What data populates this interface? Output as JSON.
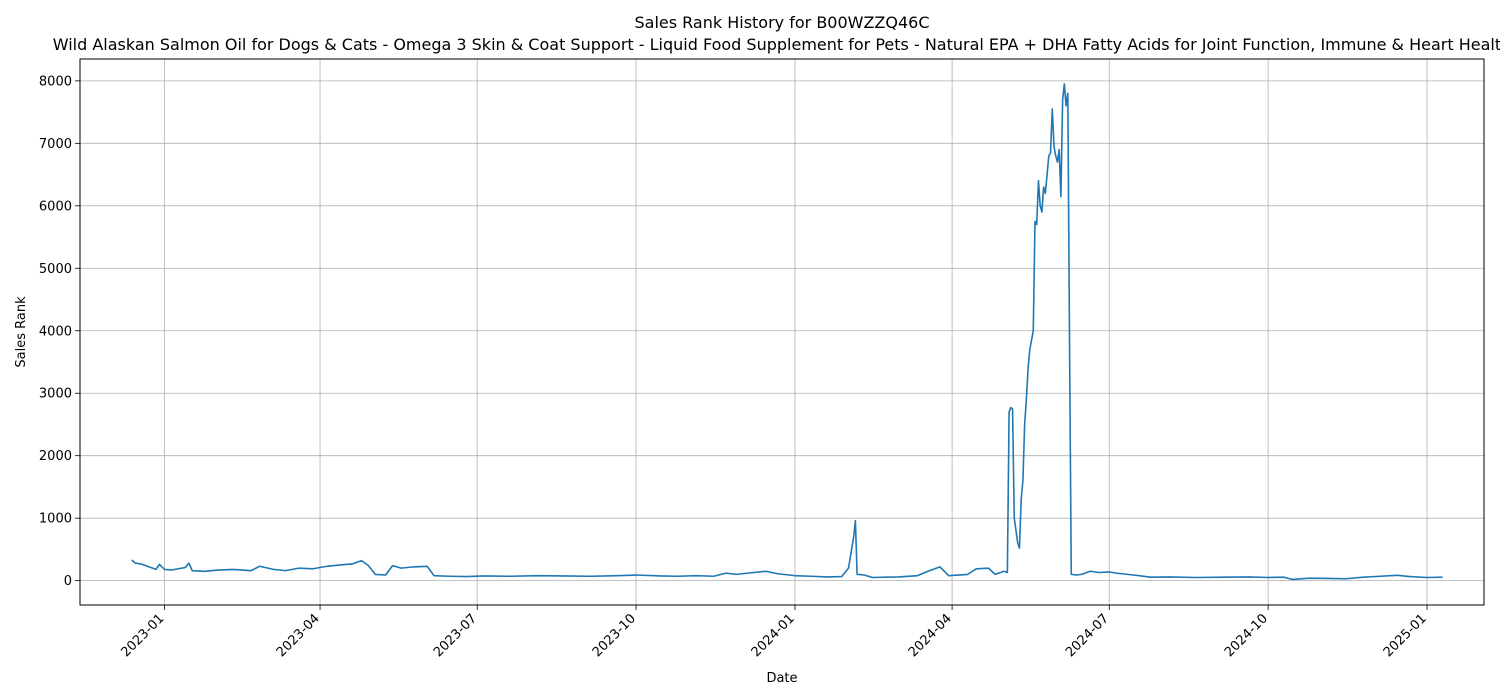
{
  "chart_data": {
    "type": "line",
    "title": "Sales Rank History for B00WZZQ46C",
    "subtitle": "Wild Alaskan Salmon Oil for Dogs & Cats - Omega 3 Skin & Coat Support - Liquid Food Supplement for Pets - Natural EPA + DHA Fatty Acids for Joint Function, Immune & Heart Health",
    "xlabel": "Date",
    "ylabel": "Sales Rank",
    "grid": true,
    "xlim": [
      "2022-11-13",
      "2025-02-03"
    ],
    "ylim": [
      -390,
      8350
    ],
    "x_ticks": [
      "2023-01",
      "2023-04",
      "2023-07",
      "2023-10",
      "2024-01",
      "2024-04",
      "2024-07",
      "2024-10",
      "2025-01"
    ],
    "y_ticks": [
      0,
      1000,
      2000,
      3000,
      4000,
      5000,
      6000,
      7000,
      8000
    ],
    "series": [
      {
        "color": "#1f77b4",
        "points": [
          [
            "2022-12-13",
            330
          ],
          [
            "2022-12-15",
            280
          ],
          [
            "2022-12-18",
            270
          ],
          [
            "2022-12-21",
            240
          ],
          [
            "2022-12-24",
            210
          ],
          [
            "2022-12-27",
            180
          ],
          [
            "2022-12-29",
            260
          ],
          [
            "2023-01-01",
            180
          ],
          [
            "2023-01-05",
            170
          ],
          [
            "2023-01-09",
            190
          ],
          [
            "2023-01-13",
            210
          ],
          [
            "2023-01-15",
            280
          ],
          [
            "2023-01-17",
            160
          ],
          [
            "2023-01-24",
            150
          ],
          [
            "2023-02-01",
            170
          ],
          [
            "2023-02-10",
            180
          ],
          [
            "2023-02-20",
            160
          ],
          [
            "2023-02-25",
            230
          ],
          [
            "2023-03-05",
            180
          ],
          [
            "2023-03-12",
            160
          ],
          [
            "2023-03-20",
            200
          ],
          [
            "2023-03-28",
            190
          ],
          [
            "2023-04-05",
            230
          ],
          [
            "2023-04-12",
            250
          ],
          [
            "2023-04-20",
            270
          ],
          [
            "2023-04-25",
            320
          ],
          [
            "2023-04-29",
            240
          ],
          [
            "2023-05-03",
            100
          ],
          [
            "2023-05-09",
            90
          ],
          [
            "2023-05-13",
            240
          ],
          [
            "2023-05-18",
            200
          ],
          [
            "2023-05-25",
            220
          ],
          [
            "2023-06-02",
            230
          ],
          [
            "2023-06-06",
            80
          ],
          [
            "2023-06-15",
            70
          ],
          [
            "2023-06-25",
            65
          ],
          [
            "2023-07-05",
            75
          ],
          [
            "2023-07-20",
            70
          ],
          [
            "2023-08-05",
            80
          ],
          [
            "2023-08-20",
            75
          ],
          [
            "2023-09-05",
            70
          ],
          [
            "2023-09-20",
            80
          ],
          [
            "2023-10-01",
            90
          ],
          [
            "2023-10-15",
            75
          ],
          [
            "2023-10-25",
            70
          ],
          [
            "2023-11-05",
            80
          ],
          [
            "2023-11-15",
            70
          ],
          [
            "2023-11-22",
            120
          ],
          [
            "2023-11-28",
            100
          ],
          [
            "2023-12-08",
            130
          ],
          [
            "2023-12-15",
            150
          ],
          [
            "2023-12-22",
            110
          ],
          [
            "2024-01-01",
            80
          ],
          [
            "2024-01-10",
            70
          ],
          [
            "2024-01-20",
            60
          ],
          [
            "2024-01-28",
            65
          ],
          [
            "2024-02-01",
            200
          ],
          [
            "2024-02-04",
            700
          ],
          [
            "2024-02-05",
            960
          ],
          [
            "2024-02-06",
            100
          ],
          [
            "2024-02-10",
            90
          ],
          [
            "2024-02-15",
            50
          ],
          [
            "2024-03-01",
            60
          ],
          [
            "2024-03-12",
            80
          ],
          [
            "2024-03-18",
            150
          ],
          [
            "2024-03-25",
            220
          ],
          [
            "2024-03-30",
            80
          ],
          [
            "2024-04-10",
            100
          ],
          [
            "2024-04-15",
            190
          ],
          [
            "2024-04-22",
            200
          ],
          [
            "2024-04-26",
            100
          ],
          [
            "2024-05-01",
            150
          ],
          [
            "2024-05-03",
            130
          ],
          [
            "2024-05-04",
            2700
          ],
          [
            "2024-05-05",
            2770
          ],
          [
            "2024-05-06",
            2750
          ],
          [
            "2024-05-07",
            1000
          ],
          [
            "2024-05-09",
            600
          ],
          [
            "2024-05-10",
            520
          ],
          [
            "2024-05-11",
            1300
          ],
          [
            "2024-05-12",
            1600
          ],
          [
            "2024-05-13",
            2500
          ],
          [
            "2024-05-14",
            2900
          ],
          [
            "2024-05-15",
            3400
          ],
          [
            "2024-05-16",
            3700
          ],
          [
            "2024-05-18",
            4000
          ],
          [
            "2024-05-19",
            5750
          ],
          [
            "2024-05-20",
            5700
          ],
          [
            "2024-05-21",
            6400
          ],
          [
            "2024-05-22",
            6000
          ],
          [
            "2024-05-23",
            5900
          ],
          [
            "2024-05-24",
            6300
          ],
          [
            "2024-05-25",
            6200
          ],
          [
            "2024-05-26",
            6500
          ],
          [
            "2024-05-27",
            6800
          ],
          [
            "2024-05-28",
            6850
          ],
          [
            "2024-05-29",
            7550
          ],
          [
            "2024-05-30",
            6950
          ],
          [
            "2024-05-31",
            6800
          ],
          [
            "2024-06-01",
            6700
          ],
          [
            "2024-06-02",
            6900
          ],
          [
            "2024-06-03",
            6150
          ],
          [
            "2024-06-04",
            7700
          ],
          [
            "2024-06-05",
            7950
          ],
          [
            "2024-06-06",
            7600
          ],
          [
            "2024-06-07",
            7800
          ],
          [
            "2024-06-08",
            3800
          ],
          [
            "2024-06-09",
            100
          ],
          [
            "2024-06-12",
            90
          ],
          [
            "2024-06-15",
            100
          ],
          [
            "2024-06-20",
            150
          ],
          [
            "2024-06-25",
            130
          ],
          [
            "2024-07-01",
            140
          ],
          [
            "2024-07-05",
            120
          ],
          [
            "2024-07-15",
            90
          ],
          [
            "2024-07-25",
            55
          ],
          [
            "2024-08-05",
            60
          ],
          [
            "2024-08-20",
            50
          ],
          [
            "2024-09-05",
            55
          ],
          [
            "2024-09-20",
            60
          ],
          [
            "2024-10-01",
            50
          ],
          [
            "2024-10-10",
            55
          ],
          [
            "2024-10-15",
            20
          ],
          [
            "2024-10-25",
            40
          ],
          [
            "2024-11-05",
            35
          ],
          [
            "2024-11-15",
            30
          ],
          [
            "2024-11-25",
            55
          ],
          [
            "2024-12-05",
            70
          ],
          [
            "2024-12-15",
            85
          ],
          [
            "2024-12-22",
            65
          ],
          [
            "2025-01-01",
            50
          ],
          [
            "2025-01-10",
            55
          ]
        ]
      }
    ]
  }
}
